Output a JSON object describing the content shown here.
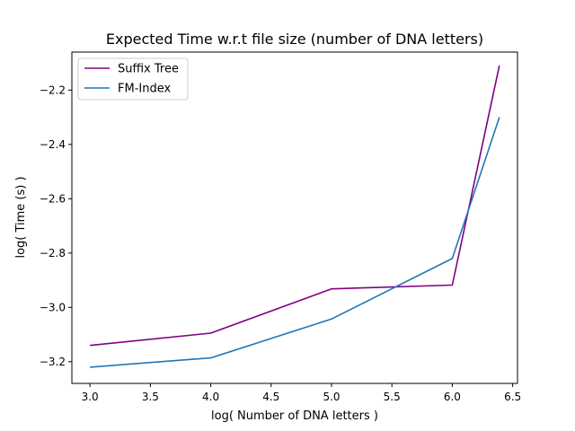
{
  "chart_data": {
    "type": "line",
    "title": "Expected Time w.r.t file size (number of DNA letters)",
    "xlabel": "log( Number of DNA letters )",
    "ylabel": "log( Time (s) )",
    "xlim": [
      2.85,
      6.54
    ],
    "ylim": [
      -3.28,
      -2.06
    ],
    "x_ticks": [
      3.0,
      3.5,
      4.0,
      4.5,
      5.0,
      5.5,
      6.0,
      6.5
    ],
    "x_tick_labels": [
      "3.0",
      "3.5",
      "4.0",
      "4.5",
      "5.0",
      "5.5",
      "6.0",
      "6.5"
    ],
    "y_ticks": [
      -3.2,
      -3.0,
      -2.8,
      -2.6,
      -2.4,
      -2.2
    ],
    "y_tick_labels": [
      "−3.2",
      "−3.0",
      "−2.8",
      "−2.6",
      "−2.4",
      "−2.2"
    ],
    "grid": false,
    "legend_position": "top-left",
    "series": [
      {
        "name": "Suffix Tree",
        "color": "#800080",
        "x": [
          3.0,
          4.0,
          5.0,
          6.0,
          6.39
        ],
        "y": [
          -3.14,
          -3.095,
          -2.932,
          -2.918,
          -2.11
        ]
      },
      {
        "name": "FM-Index",
        "color": "#1f77b4",
        "x": [
          3.0,
          4.0,
          5.0,
          6.0,
          6.39
        ],
        "y": [
          -3.22,
          -3.186,
          -3.043,
          -2.82,
          -2.3
        ]
      }
    ]
  }
}
